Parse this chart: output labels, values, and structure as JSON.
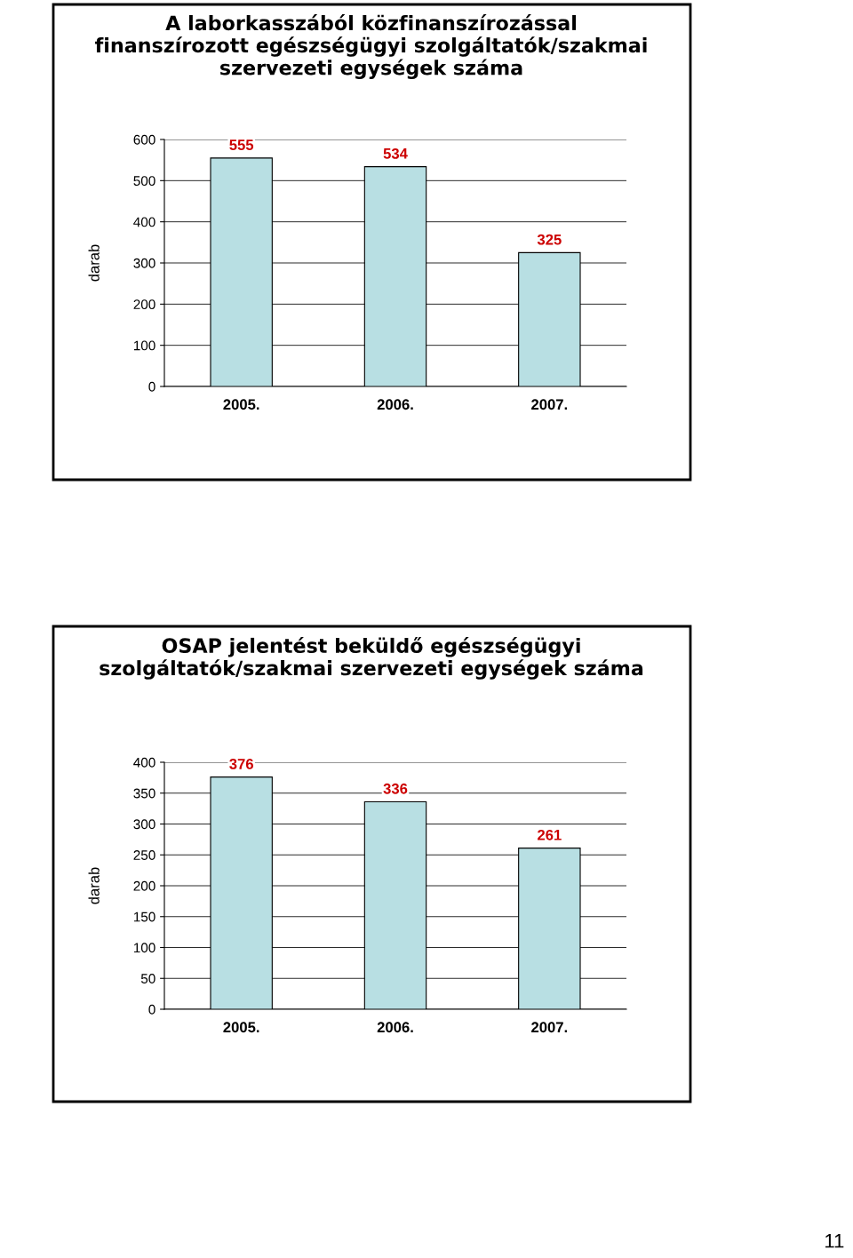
{
  "chart_data": [
    {
      "type": "bar",
      "title": "A laborkasszából közfinanszírozással finanszírozott egészségügyi szolgáltatók/szakmai szervezeti egységek száma",
      "ylabel": "darab",
      "categories": [
        "2005.",
        "2006.",
        "2007."
      ],
      "values": [
        555,
        534,
        325
      ],
      "color": "#b8dfe3",
      "ylim": [
        0,
        600
      ],
      "yticks": [
        0,
        100,
        200,
        300,
        400,
        500,
        600
      ],
      "grid": "y",
      "data_labels": true,
      "legend": false
    },
    {
      "type": "bar",
      "title": "OSAP jelentést beküldő egészségügyi szolgáltatók/szakmai szervezeti egységek száma",
      "ylabel": "darab",
      "categories": [
        "2005.",
        "2006.",
        "2007."
      ],
      "values": [
        376,
        336,
        261
      ],
      "color": "#b8dfe3",
      "ylim": [
        0,
        400
      ],
      "yticks": [
        0,
        50,
        100,
        150,
        200,
        250,
        300,
        350,
        400
      ],
      "grid": "y",
      "data_labels": true,
      "legend": false,
      "annotations": [
        "11"
      ]
    }
  ]
}
